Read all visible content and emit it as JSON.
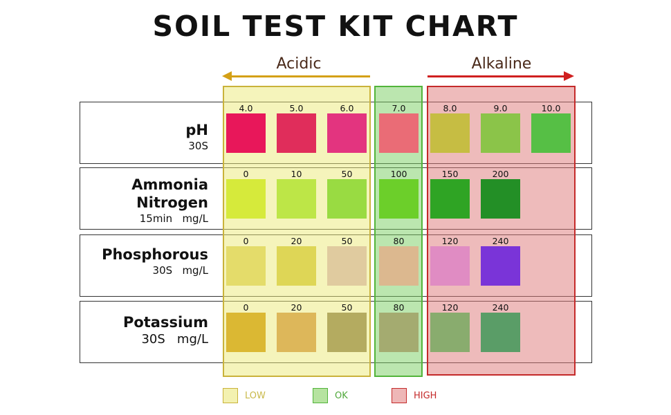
{
  "chart_data": {
    "type": "table",
    "title": "SOIL TEST KIT CHART",
    "direction_labels": {
      "left": "Acidic",
      "right": "Alkaline"
    },
    "zones": [
      {
        "name": "LOW",
        "color": "#f2f0a8",
        "border": "#c9b23a",
        "columns": [
          0,
          1,
          2
        ]
      },
      {
        "name": "OK",
        "color": "#b6e3a0",
        "border": "#52b43a",
        "columns": [
          3
        ]
      },
      {
        "name": "HIGH",
        "color": "#edb7b7",
        "border": "#c42a2a",
        "columns": [
          4,
          5,
          6
        ]
      }
    ],
    "rows": [
      {
        "name": [
          "pH"
        ],
        "unit": "30S",
        "values": [
          "4.0",
          "5.0",
          "6.0",
          "7.0",
          "8.0",
          "9.0",
          "10.0"
        ],
        "colors": [
          "#e8175a",
          "#e02d5b",
          "#e3347f",
          "#ea6c76",
          "#c6bd43",
          "#8bc449",
          "#56bf45"
        ]
      },
      {
        "name": [
          "Ammonia",
          "Nitrogen"
        ],
        "unit": "15min   mg/L",
        "values": [
          "0",
          "10",
          "50",
          "100",
          "150",
          "200"
        ],
        "colors": [
          "#d6ea3b",
          "#bde647",
          "#99db42",
          "#6ccf2a",
          "#2fa424",
          "#238f26"
        ]
      },
      {
        "name": [
          "Phosphorous"
        ],
        "unit": "30S   mg/L",
        "values": [
          "0",
          "20",
          "50",
          "80",
          "120",
          "240"
        ],
        "colors": [
          "#e4dc6a",
          "#ded656",
          "#e0cb9f",
          "#dcb88f",
          "#e08cc3",
          "#7a34d8"
        ]
      },
      {
        "name": [
          "Potassium"
        ],
        "unit": "30S   mg/L",
        "values": [
          "0",
          "20",
          "50",
          "80",
          "120",
          "240"
        ],
        "colors": [
          "#dbb833",
          "#ddb75a",
          "#b4ab60",
          "#a4ab70",
          "#89ac6e",
          "#5a9d67"
        ]
      }
    ],
    "legend": [
      {
        "label": "LOW",
        "fill": "#f3f1b0",
        "border": "#c9b23a",
        "text_color": "#c9b94a"
      },
      {
        "label": "OK",
        "fill": "#b6e3a0",
        "border": "#52b43a",
        "text_color": "#4fa83a"
      },
      {
        "label": "HIGH",
        "fill": "#eeb7b7",
        "border": "#c42a2a",
        "text_color": "#c42a2a"
      }
    ]
  },
  "colors": {
    "acidic_arrow": "#d4a016",
    "alkaline_arrow": "#d01f1f"
  }
}
